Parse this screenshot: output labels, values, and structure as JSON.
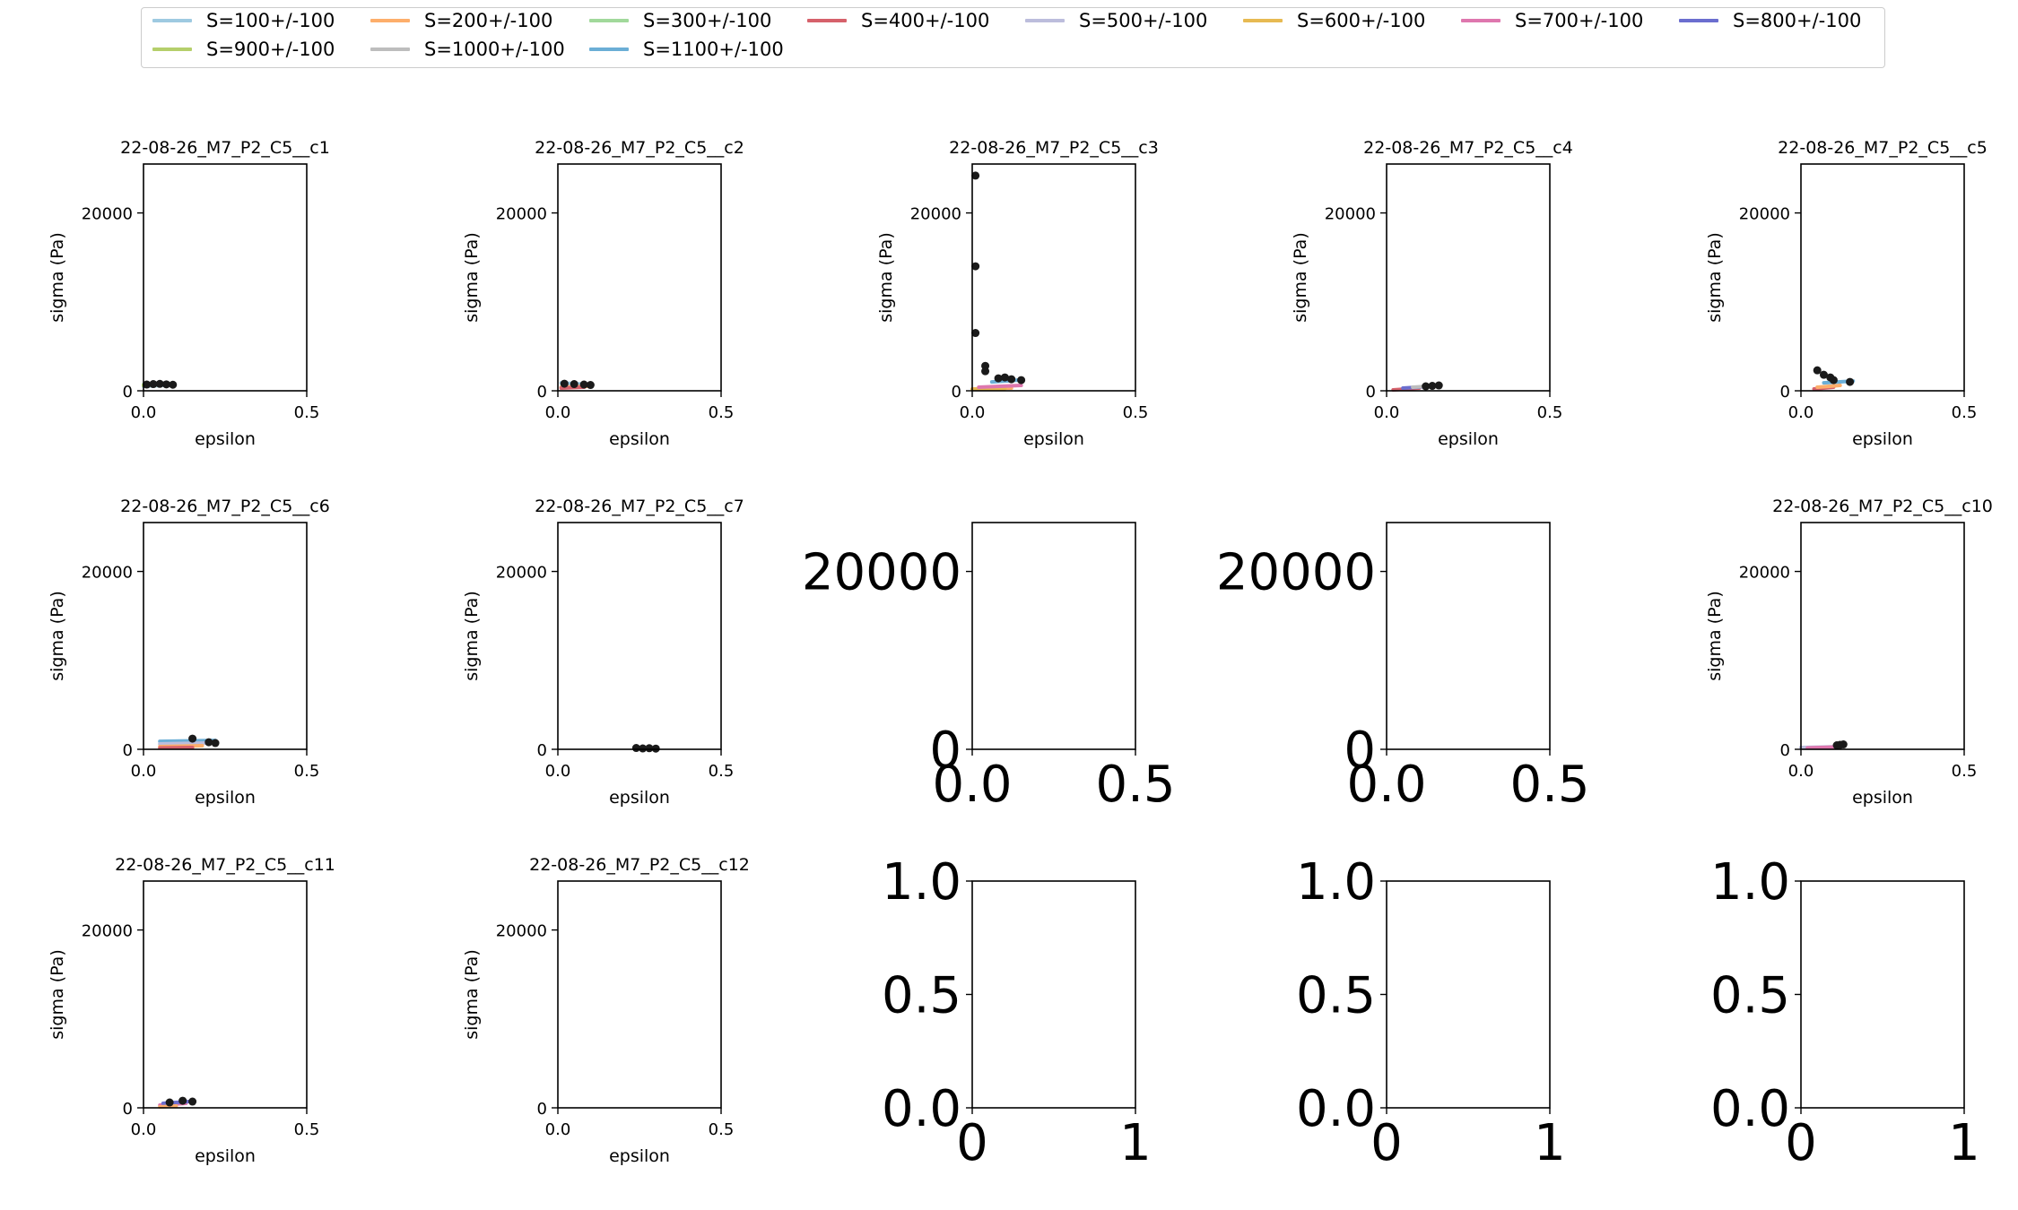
{
  "legend": [
    {
      "label": "S=100+/-100",
      "color": "#9ecae1"
    },
    {
      "label": "S=200+/-100",
      "color": "#fdae6b"
    },
    {
      "label": "S=300+/-100",
      "color": "#a1d99b"
    },
    {
      "label": "S=400+/-100",
      "color": "#d6616b"
    },
    {
      "label": "S=500+/-100",
      "color": "#bcbddc"
    },
    {
      "label": "S=600+/-100",
      "color": "#e7ba52"
    },
    {
      "label": "S=700+/-100",
      "color": "#de77ae"
    },
    {
      "label": "S=800+/-100",
      "color": "#6b6ecf"
    },
    {
      "label": "S=900+/-100",
      "color": "#b5cf6b"
    },
    {
      "label": "S=1000+/-100",
      "color": "#bdbdbd"
    },
    {
      "label": "S=1100+/-100",
      "color": "#6baed6"
    }
  ],
  "chart_data": [
    {
      "type": "scatter",
      "title": "22-08-26_M7_P2_C5__c1",
      "xlabel": "epsilon",
      "ylabel": "sigma (Pa)",
      "xlim": [
        0,
        0.5
      ],
      "ylim": [
        0,
        25500
      ],
      "xticks": [
        "0.0",
        "0.5"
      ],
      "yticks": [
        "0",
        "20000"
      ],
      "points": [
        [
          0.01,
          700
        ],
        [
          0.03,
          750
        ],
        [
          0.05,
          780
        ],
        [
          0.07,
          720
        ],
        [
          0.09,
          680
        ]
      ],
      "series": [
        {
          "name": "S=100+/-100",
          "x": [
            0.0,
            0.09
          ],
          "y": [
            500,
            650
          ]
        },
        {
          "name": "S=300+/-100",
          "x": [
            0.0,
            0.08
          ],
          "y": [
            700,
            800
          ]
        },
        {
          "name": "S=900+/-100",
          "x": [
            0.0,
            0.07
          ],
          "y": [
            600,
            700
          ]
        }
      ]
    },
    {
      "type": "scatter",
      "title": "22-08-26_M7_P2_C5__c2",
      "xlabel": "epsilon",
      "ylabel": "sigma (Pa)",
      "xlim": [
        0,
        0.5
      ],
      "ylim": [
        0,
        25500
      ],
      "xticks": [
        "0.0",
        "0.5"
      ],
      "yticks": [
        "0",
        "20000"
      ],
      "points": [
        [
          0.02,
          800
        ],
        [
          0.05,
          750
        ],
        [
          0.08,
          700
        ],
        [
          0.1,
          650
        ]
      ],
      "series": [
        {
          "name": "S=100+/-100",
          "x": [
            0.01,
            0.1
          ],
          "y": [
            900,
            700
          ]
        },
        {
          "name": "S=200+/-100",
          "x": [
            0.01,
            0.09
          ],
          "y": [
            400,
            500
          ]
        },
        {
          "name": "S=400+/-100",
          "x": [
            0.01,
            0.08
          ],
          "y": [
            300,
            400
          ]
        }
      ]
    },
    {
      "type": "scatter",
      "title": "22-08-26_M7_P2_C5__c3",
      "xlabel": "epsilon",
      "ylabel": "sigma (Pa)",
      "xlim": [
        0,
        0.5
      ],
      "ylim": [
        0,
        25500
      ],
      "xticks": [
        "0.0",
        "0.5"
      ],
      "yticks": [
        "0",
        "20000"
      ],
      "points": [
        [
          0.01,
          24200
        ],
        [
          0.01,
          14000
        ],
        [
          0.01,
          6500
        ],
        [
          0.04,
          2800
        ],
        [
          0.04,
          2200
        ],
        [
          0.08,
          1400
        ],
        [
          0.1,
          1500
        ],
        [
          0.12,
          1300
        ],
        [
          0.15,
          1200
        ]
      ],
      "series": [
        {
          "name": "S=200+/-100",
          "x": [
            0.0,
            0.12
          ],
          "y": [
            200,
            300
          ]
        },
        {
          "name": "S=600+/-100",
          "x": [
            0.0,
            0.1
          ],
          "y": [
            150,
            250
          ]
        },
        {
          "name": "S=700+/-100",
          "x": [
            0.02,
            0.15
          ],
          "y": [
            400,
            600
          ]
        },
        {
          "name": "S=1100+/-100",
          "x": [
            0.06,
            0.14
          ],
          "y": [
            1000,
            1200
          ]
        }
      ]
    },
    {
      "type": "scatter",
      "title": "22-08-26_M7_P2_C5__c4",
      "xlabel": "epsilon",
      "ylabel": "sigma (Pa)",
      "xlim": [
        0,
        0.5
      ],
      "ylim": [
        0,
        25500
      ],
      "xticks": [
        "0.0",
        "0.5"
      ],
      "yticks": [
        "0",
        "20000"
      ],
      "points": [
        [
          0.12,
          500
        ],
        [
          0.14,
          550
        ],
        [
          0.16,
          600
        ]
      ],
      "series": [
        {
          "name": "S=400+/-100",
          "x": [
            0.02,
            0.1
          ],
          "y": [
            100,
            300
          ]
        },
        {
          "name": "S=800+/-100",
          "x": [
            0.05,
            0.14
          ],
          "y": [
            300,
            500
          ]
        },
        {
          "name": "S=1000+/-100",
          "x": [
            0.08,
            0.15
          ],
          "y": [
            400,
            550
          ]
        }
      ]
    },
    {
      "type": "scatter",
      "title": "22-08-26_M7_P2_C5__c5",
      "xlabel": "epsilon",
      "ylabel": "sigma (Pa)",
      "xlim": [
        0,
        0.5
      ],
      "ylim": [
        0,
        25500
      ],
      "xticks": [
        "0.0",
        "0.5"
      ],
      "yticks": [
        "0",
        "20000"
      ],
      "points": [
        [
          0.05,
          2300
        ],
        [
          0.07,
          1800
        ],
        [
          0.09,
          1500
        ],
        [
          0.1,
          1200
        ],
        [
          0.15,
          1000
        ]
      ],
      "series": [
        {
          "name": "S=400+/-100",
          "x": [
            0.04,
            0.1
          ],
          "y": [
            200,
            400
          ]
        },
        {
          "name": "S=200+/-100",
          "x": [
            0.05,
            0.12
          ],
          "y": [
            400,
            600
          ]
        },
        {
          "name": "S=1100+/-100",
          "x": [
            0.07,
            0.16
          ],
          "y": [
            900,
            1100
          ]
        }
      ]
    },
    {
      "type": "scatter",
      "title": "22-08-26_M7_P2_C5__c6",
      "xlabel": "epsilon",
      "ylabel": "sigma (Pa)",
      "xlim": [
        0,
        0.5
      ],
      "ylim": [
        0,
        25500
      ],
      "xticks": [
        "0.0",
        "0.5"
      ],
      "yticks": [
        "0",
        "20000"
      ],
      "points": [
        [
          0.15,
          1200
        ],
        [
          0.2,
          800
        ],
        [
          0.22,
          700
        ]
      ],
      "series": [
        {
          "name": "S=1100+/-100",
          "x": [
            0.05,
            0.22
          ],
          "y": [
            900,
            1000
          ]
        },
        {
          "name": "S=500+/-100",
          "x": [
            0.05,
            0.2
          ],
          "y": [
            600,
            700
          ]
        },
        {
          "name": "S=200+/-100",
          "x": [
            0.05,
            0.18
          ],
          "y": [
            300,
            400
          ]
        },
        {
          "name": "S=400+/-100",
          "x": [
            0.05,
            0.15
          ],
          "y": [
            150,
            200
          ]
        }
      ]
    },
    {
      "type": "scatter",
      "title": "22-08-26_M7_P2_C5__c7",
      "xlabel": "epsilon",
      "ylabel": "sigma (Pa)",
      "xlim": [
        0,
        0.5
      ],
      "ylim": [
        0,
        25500
      ],
      "xticks": [
        "0.0",
        "0.5"
      ],
      "yticks": [
        "0",
        "20000"
      ],
      "points": [
        [
          0.24,
          150
        ],
        [
          0.26,
          100
        ],
        [
          0.28,
          120
        ],
        [
          0.3,
          80
        ]
      ],
      "series": []
    },
    {
      "type": "scatter",
      "title": "",
      "xlabel": "",
      "ylabel": "",
      "xlim": [
        0,
        0.5
      ],
      "ylim": [
        0,
        25500
      ],
      "xticks": [
        "0.0",
        "0.5"
      ],
      "yticks": [
        "0",
        "20000"
      ],
      "big_ticks": true,
      "points": [],
      "series": []
    },
    {
      "type": "scatter",
      "title": "",
      "xlabel": "",
      "ylabel": "",
      "xlim": [
        0,
        0.5
      ],
      "ylim": [
        0,
        25500
      ],
      "xticks": [
        "0.0",
        "0.5"
      ],
      "yticks": [
        "0",
        "20000"
      ],
      "big_ticks": true,
      "points": [],
      "series": []
    },
    {
      "type": "scatter",
      "title": "22-08-26_M7_P2_C5__c10",
      "xlabel": "epsilon",
      "ylabel": "sigma (Pa)",
      "xlim": [
        0,
        0.5
      ],
      "ylim": [
        0,
        25500
      ],
      "xticks": [
        "0.0",
        "0.5"
      ],
      "yticks": [
        "0",
        "20000"
      ],
      "points": [
        [
          0.11,
          450
        ],
        [
          0.12,
          500
        ],
        [
          0.13,
          550
        ]
      ],
      "series": [
        {
          "name": "S=500+/-100",
          "x": [
            0.0,
            0.12
          ],
          "y": [
            200,
            300
          ]
        },
        {
          "name": "S=700+/-100",
          "x": [
            0.02,
            0.1
          ],
          "y": [
            150,
            250
          ]
        }
      ]
    },
    {
      "type": "scatter",
      "title": "22-08-26_M7_P2_C5__c11",
      "xlabel": "epsilon",
      "ylabel": "sigma (Pa)",
      "xlim": [
        0,
        0.5
      ],
      "ylim": [
        0,
        25500
      ],
      "xticks": [
        "0.0",
        "0.5"
      ],
      "yticks": [
        "0",
        "20000"
      ],
      "points": [
        [
          0.08,
          600
        ],
        [
          0.12,
          800
        ],
        [
          0.15,
          700
        ]
      ],
      "series": [
        {
          "name": "S=700+/-100",
          "x": [
            0.05,
            0.13
          ],
          "y": [
            300,
            500
          ]
        },
        {
          "name": "S=800+/-100",
          "x": [
            0.06,
            0.14
          ],
          "y": [
            500,
            700
          ]
        },
        {
          "name": "S=200+/-100",
          "x": [
            0.05,
            0.1
          ],
          "y": [
            100,
            200
          ]
        }
      ]
    },
    {
      "type": "scatter",
      "title": "22-08-26_M7_P2_C5__c12",
      "xlabel": "epsilon",
      "ylabel": "sigma (Pa)",
      "xlim": [
        0,
        0.5
      ],
      "ylim": [
        0,
        25500
      ],
      "xticks": [
        "0.0",
        "0.5"
      ],
      "yticks": [
        "0",
        "20000"
      ],
      "points": [],
      "series": []
    },
    {
      "type": "scatter",
      "title": "",
      "xlabel": "",
      "ylabel": "",
      "xlim": [
        0,
        1
      ],
      "ylim": [
        0,
        1
      ],
      "xticks": [
        "0",
        "1"
      ],
      "yticks": [
        "0.0",
        "0.5",
        "1.0"
      ],
      "big_ticks": true,
      "points": [],
      "series": []
    },
    {
      "type": "scatter",
      "title": "",
      "xlabel": "",
      "ylabel": "",
      "xlim": [
        0,
        1
      ],
      "ylim": [
        0,
        1
      ],
      "xticks": [
        "0",
        "1"
      ],
      "yticks": [
        "0.0",
        "0.5",
        "1.0"
      ],
      "big_ticks": true,
      "points": [],
      "series": []
    },
    {
      "type": "scatter",
      "title": "",
      "xlabel": "",
      "ylabel": "",
      "xlim": [
        0,
        1
      ],
      "ylim": [
        0,
        1
      ],
      "xticks": [
        "0",
        "1"
      ],
      "yticks": [
        "0.0",
        "0.5",
        "1.0"
      ],
      "big_ticks": true,
      "points": [],
      "series": []
    }
  ]
}
